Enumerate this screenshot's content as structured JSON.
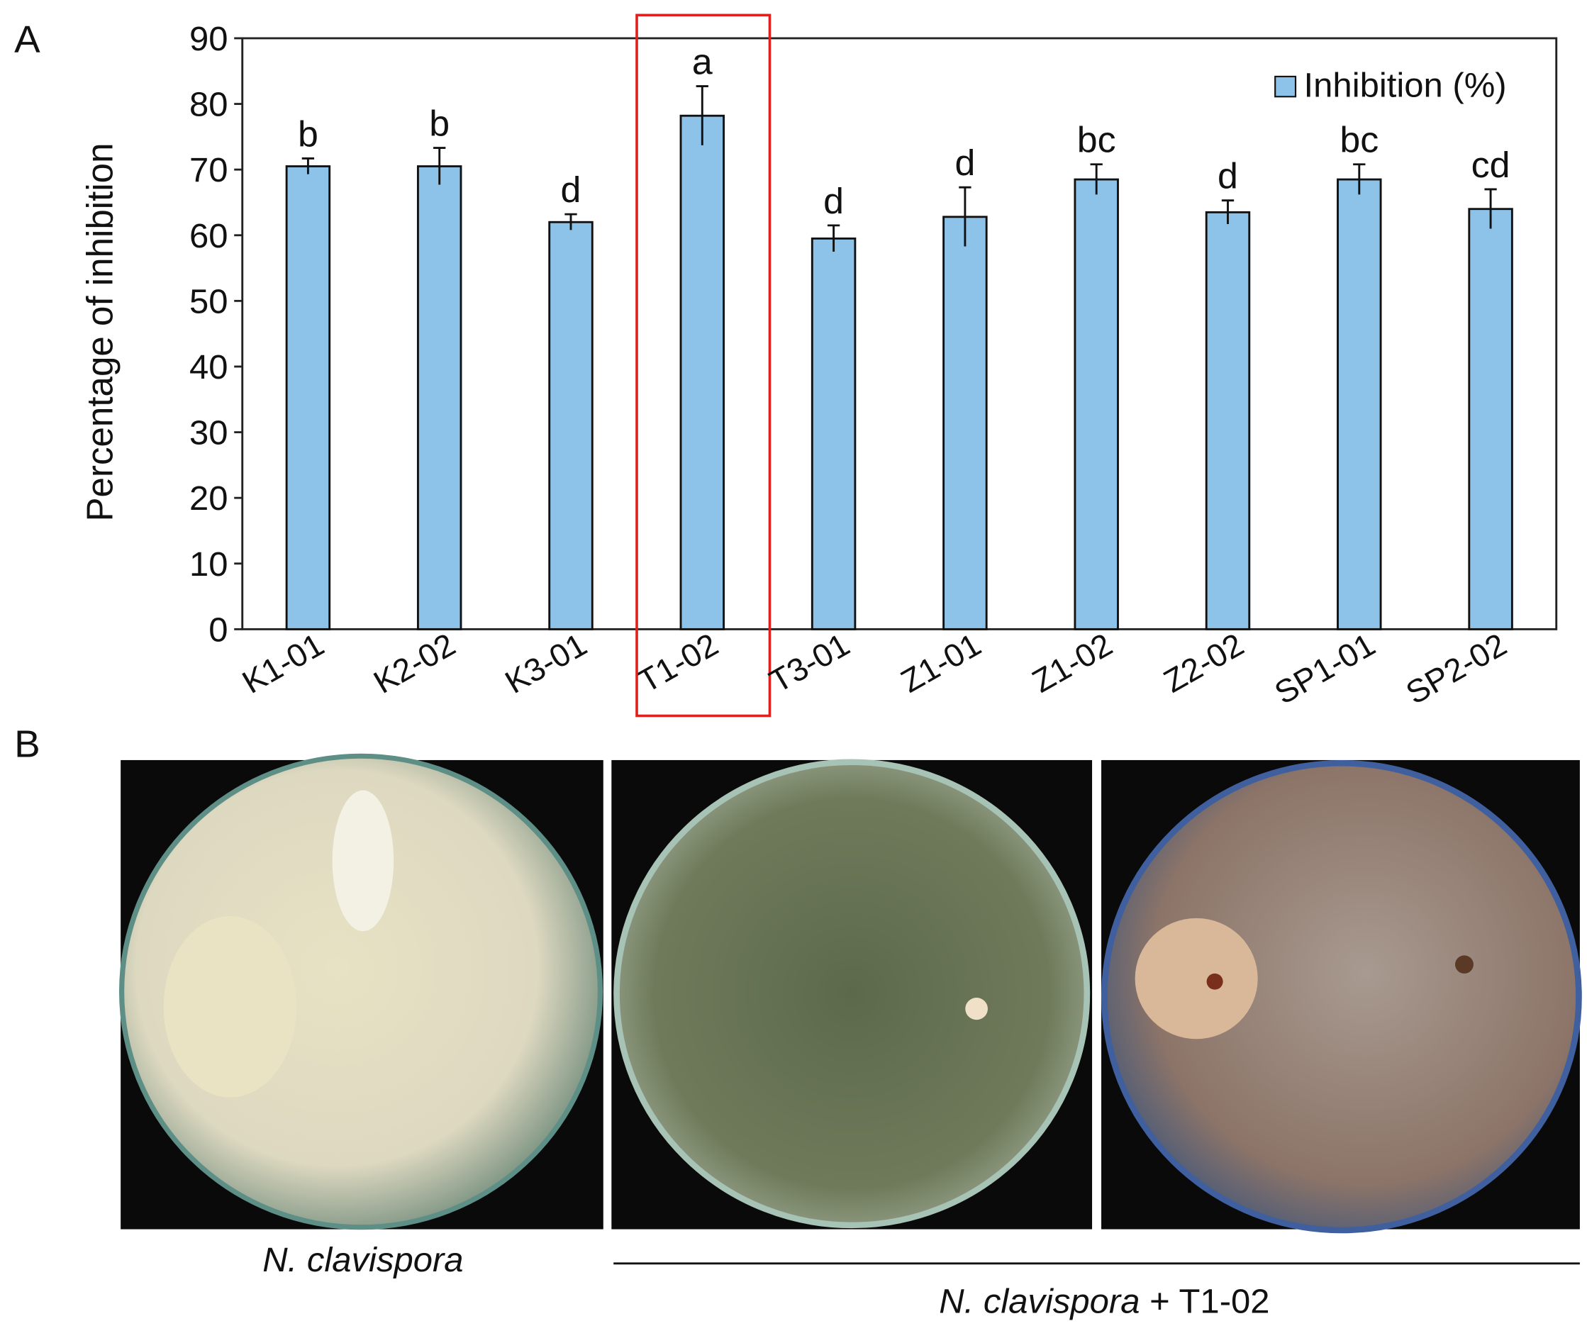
{
  "panel_labels": {
    "a": "A",
    "b": "B"
  },
  "chart_data": {
    "type": "bar",
    "y_label": "Percentage of inhibition",
    "categories": [
      "K1-01",
      "K2-02",
      "K3-01",
      "T1-02",
      "T3-01",
      "Z1-01",
      "Z1-02",
      "Z2-02",
      "SP1-01",
      "SP2-02"
    ],
    "series": [
      {
        "name": "Inhibition (%)",
        "color": "#8dc3e8",
        "values": [
          70.5,
          70.5,
          62,
          78.2,
          59.5,
          62.8,
          68.5,
          63.5,
          68.5,
          64
        ],
        "errors": [
          1.2,
          2.8,
          1.2,
          4.5,
          2,
          4.5,
          2.3,
          1.8,
          2.3,
          3
        ],
        "significance_letters": [
          "b",
          "b",
          "d",
          "a",
          "d",
          "d",
          "bc",
          "d",
          "bc",
          "cd"
        ]
      }
    ],
    "ylim": [
      0,
      90
    ],
    "yticks": [
      0,
      10,
      20,
      30,
      40,
      50,
      60,
      70,
      80,
      90
    ],
    "legend": "upper-right",
    "highlight_category": "T1-02"
  },
  "panel_b": {
    "captions": [
      {
        "species": "N. clavispora"
      },
      {
        "species": "N. clavispora",
        "treatment": "+ T1-02"
      }
    ]
  }
}
